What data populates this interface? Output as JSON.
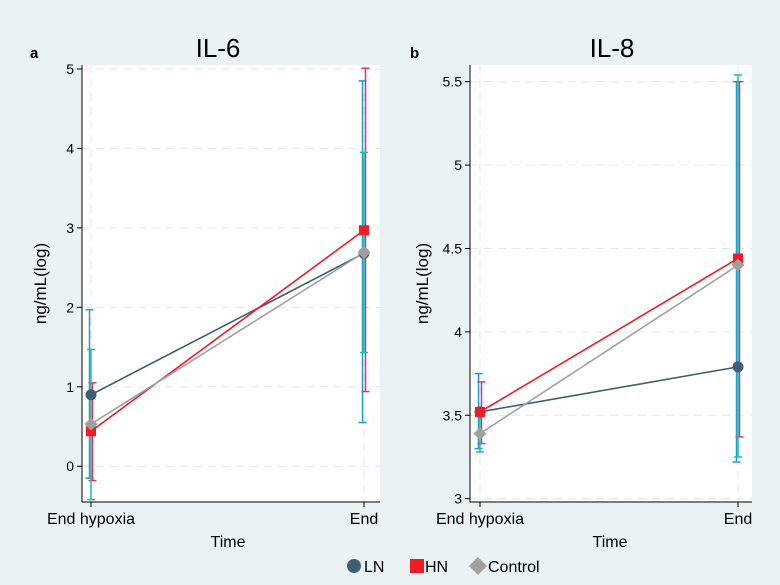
{
  "colors": {
    "background": "#eaf2f3",
    "plot_bg": "#ffffff",
    "grid": "#e6e6e6",
    "axis": "#000000",
    "LN": "#3d5f75",
    "HN": "#ee1c24",
    "Control": "#a0a0a0",
    "ci_LN": "#1b9ed6",
    "ci_HN": "#e8316b",
    "ci_Control": "#19c39c"
  },
  "legend": {
    "items": [
      {
        "key": "LN",
        "label": "LN",
        "marker": "circle"
      },
      {
        "key": "HN",
        "label": "HN",
        "marker": "square"
      },
      {
        "key": "Control",
        "label": "Control",
        "marker": "diamond"
      }
    ]
  },
  "chart_data": [
    {
      "type": "line",
      "panel_label": "a",
      "title": "IL-6",
      "xlabel": "Time",
      "ylabel": "ng/mL(log)",
      "categories": [
        "End hypoxia",
        "End"
      ],
      "ylim": [
        -0.45,
        5.05
      ],
      "yticks": [
        0,
        1,
        2,
        3,
        4,
        5
      ],
      "ytick_labels": [
        "0",
        "1",
        "2",
        "3",
        "4",
        "5"
      ],
      "series": [
        {
          "key": "LN",
          "name": "LN",
          "values": [
            0.9,
            2.68
          ],
          "ci": [
            [
              -0.15,
              1.97
            ],
            [
              0.55,
              4.85
            ]
          ]
        },
        {
          "key": "HN",
          "name": "HN",
          "values": [
            0.44,
            2.97
          ],
          "ci": [
            [
              -0.18,
              1.05
            ],
            [
              0.94,
              5.01
            ]
          ]
        },
        {
          "key": "Control",
          "name": "Control",
          "values": [
            0.53,
            2.69
          ],
          "ci": [
            [
              -0.42,
              1.47
            ],
            [
              1.43,
              3.95
            ]
          ]
        }
      ]
    },
    {
      "type": "line",
      "panel_label": "b",
      "title": "IL-8",
      "xlabel": "Time",
      "ylabel": "ng/mL(log)",
      "categories": [
        "End hypoxia",
        "End"
      ],
      "ylim": [
        2.98,
        5.6
      ],
      "yticks": [
        3,
        3.5,
        4,
        4.5,
        5,
        5.5
      ],
      "ytick_labels": [
        "3",
        "3.5",
        "4",
        "4.5",
        "5",
        "5.5"
      ],
      "series": [
        {
          "key": "LN",
          "name": "LN",
          "values": [
            3.52,
            3.79
          ],
          "ci": [
            [
              3.3,
              3.75
            ],
            [
              3.22,
              5.5
            ]
          ]
        },
        {
          "key": "HN",
          "name": "HN",
          "values": [
            3.52,
            4.44
          ],
          "ci": [
            [
              3.33,
              3.7
            ],
            [
              3.37,
              5.5
            ]
          ]
        },
        {
          "key": "Control",
          "name": "Control",
          "values": [
            3.39,
            4.4
          ],
          "ci": [
            [
              3.28,
              3.5
            ],
            [
              3.25,
              5.54
            ]
          ]
        }
      ]
    }
  ]
}
